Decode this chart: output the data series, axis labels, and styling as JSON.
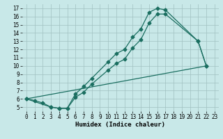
{
  "xlabel": "Humidex (Indice chaleur)",
  "ylabel": "",
  "xlim": [
    -0.5,
    23.5
  ],
  "ylim": [
    4.5,
    17.5
  ],
  "xticks": [
    0,
    1,
    2,
    3,
    4,
    5,
    6,
    7,
    8,
    9,
    10,
    11,
    12,
    13,
    14,
    15,
    16,
    17,
    18,
    19,
    20,
    21,
    22,
    23
  ],
  "yticks": [
    5,
    6,
    7,
    8,
    9,
    10,
    11,
    12,
    13,
    14,
    15,
    16,
    17
  ],
  "bg_color": "#c8e8e8",
  "grid_color": "#a0c0c0",
  "line_color": "#1a6e60",
  "line1_x": [
    0,
    1,
    2,
    3,
    4,
    5,
    6,
    7,
    8,
    10,
    11,
    12,
    13,
    14,
    15,
    16,
    17,
    21,
    22
  ],
  "line1_y": [
    6.0,
    5.8,
    5.5,
    5.0,
    4.85,
    4.85,
    6.6,
    7.5,
    8.5,
    10.5,
    11.5,
    12.0,
    13.5,
    14.5,
    16.5,
    17.0,
    16.8,
    13.0,
    10.0
  ],
  "line2_x": [
    0,
    3,
    4,
    5,
    6,
    7,
    8,
    10,
    11,
    12,
    13,
    14,
    15,
    16,
    17,
    21,
    22
  ],
  "line2_y": [
    6.0,
    5.0,
    4.85,
    4.85,
    6.2,
    6.8,
    7.8,
    9.5,
    10.3,
    10.8,
    12.2,
    13.2,
    15.2,
    16.3,
    16.3,
    13.0,
    10.0
  ],
  "line3_x": [
    0,
    22
  ],
  "line3_y": [
    6.0,
    10.0
  ],
  "marker": "D",
  "markersize": 2.5,
  "linewidth": 0.9,
  "tick_fontsize": 5.5,
  "xlabel_fontsize": 6.5
}
